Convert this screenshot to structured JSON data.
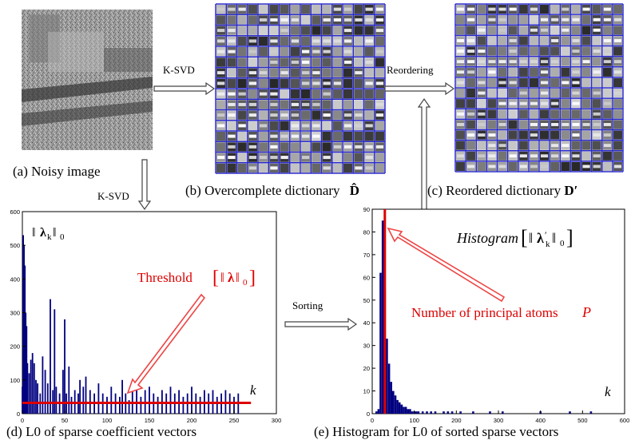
{
  "colors": {
    "dictionary_grid": "#2a2acc",
    "bar": "#000080",
    "threshold": "#dd0000",
    "arrow_outline": "#ee4444",
    "connector": "#444444",
    "axes": "#000000"
  },
  "noisy_image": {
    "caption": "(a) Noisy image"
  },
  "dictionary": {
    "caption": "(b) Overcomplete dictionary",
    "symbol": "D̂"
  },
  "reordered_dictionary": {
    "caption": "(c) Reordered dictionary",
    "symbol": "D′"
  },
  "flow_labels": {
    "ksvd_right": "K-SVD",
    "ksvd_down": "K-SVD",
    "reordering": "Reordering",
    "sorting": "Sorting"
  },
  "chart_left": {
    "caption": "(d) L0 of sparse coefficient vectors",
    "norm_label_base": "λ",
    "norm_label_sub": "k",
    "norm_label_outer_sub": "0",
    "threshold_text": "Threshold",
    "threshold_sym": "λ",
    "threshold_sub": "0",
    "axis_k": "k"
  },
  "chart_right": {
    "caption": "(e) Histogram for L0 of sorted sparse vectors",
    "hist_text": "Histogram",
    "hist_sym": "λ",
    "hist_sym_prime": "′",
    "hist_sub": "k",
    "hist_outer_sub": "0",
    "principal_text": "Number of principal atoms",
    "principal_sym": "P",
    "axis_k": "k"
  },
  "chart_data": [
    {
      "type": "bar",
      "x": [
        0,
        1,
        2,
        3,
        4,
        5,
        6,
        8,
        10,
        12,
        14,
        16,
        18,
        21,
        24,
        27,
        30,
        33,
        36,
        38,
        40,
        44,
        48,
        50,
        52,
        55,
        58,
        62,
        66,
        68,
        72,
        75,
        80,
        85,
        90,
        95,
        100,
        105,
        110,
        115,
        118,
        122,
        126,
        130,
        135,
        140,
        145,
        150,
        155,
        160,
        165,
        170,
        175,
        180,
        185,
        190,
        195,
        200,
        205,
        210,
        215,
        220,
        225,
        230,
        235,
        240,
        245,
        250,
        255
      ],
      "values": [
        80,
        530,
        500,
        440,
        300,
        260,
        150,
        120,
        160,
        180,
        150,
        100,
        90,
        60,
        170,
        130,
        90,
        340,
        70,
        310,
        80,
        60,
        130,
        280,
        60,
        140,
        50,
        70,
        60,
        100,
        80,
        110,
        70,
        60,
        90,
        60,
        50,
        80,
        60,
        50,
        100,
        60,
        40,
        80,
        70,
        50,
        70,
        80,
        60,
        50,
        70,
        60,
        80,
        60,
        70,
        50,
        60,
        80,
        60,
        50,
        70,
        60,
        70,
        50,
        60,
        70,
        60,
        50,
        60
      ],
      "ylim": [
        0,
        600
      ],
      "xlim": [
        0,
        300
      ],
      "yticks": [
        0,
        100,
        200,
        300,
        400,
        500,
        600
      ],
      "xticks": [
        0,
        50,
        100,
        150,
        200,
        250,
        300
      ],
      "threshold": 32
    },
    {
      "type": "bar",
      "x": [
        10,
        15,
        20,
        25,
        30,
        35,
        40,
        45,
        50,
        55,
        60,
        65,
        70,
        75,
        80,
        85,
        90,
        95,
        100,
        105,
        110,
        120,
        130,
        140,
        150,
        170,
        180,
        190,
        210,
        240,
        280,
        310,
        400,
        470,
        520
      ],
      "values": [
        1,
        2,
        62,
        85,
        55,
        33,
        22,
        14,
        10,
        8,
        6,
        5,
        4,
        3,
        3,
        2,
        2,
        1,
        1,
        1,
        1,
        1,
        1,
        1,
        1,
        1,
        1,
        1,
        1,
        1,
        1,
        1,
        1,
        1,
        1
      ],
      "ylim": [
        0,
        90
      ],
      "xlim": [
        0,
        600
      ],
      "yticks": [
        0,
        10,
        20,
        30,
        40,
        50,
        60,
        70,
        80,
        90
      ],
      "xticks": [
        0,
        100,
        200,
        300,
        400,
        500,
        600
      ],
      "principal_x": 30
    }
  ]
}
